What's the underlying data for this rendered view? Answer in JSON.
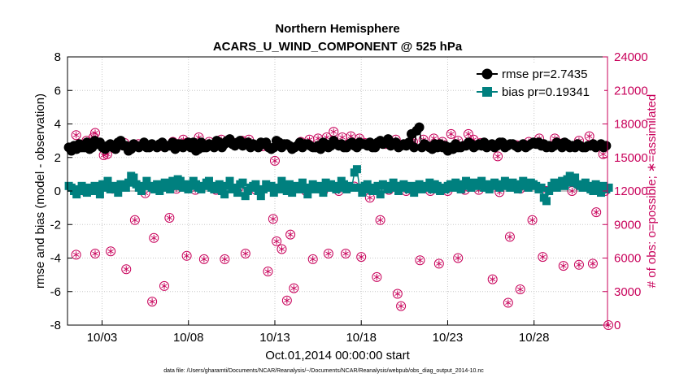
{
  "chart_data": {
    "type": "line",
    "title": "Northern Hemisphere",
    "subtitle": "ACARS_U_WIND_COMPONENT @ 525 hPa",
    "xlabel": "Oct.01,2014 00:00:00 start",
    "ylabel": "rmse and bias (model - observation)",
    "ylabel_right": "# of obs: o=possible; ∗=assimilated",
    "footnote": "data file: /Users/gharamti/Documents/NCAR/Reanalysis/~/Documents/NCAR/Reanalysis/webpub/obs_diag_output_2014-10.nc",
    "x_range_days": [
      1.0,
      32.25
    ],
    "x_ticks": [
      {
        "day": 3,
        "label": "10/03"
      },
      {
        "day": 8,
        "label": "10/08"
      },
      {
        "day": 13,
        "label": "10/13"
      },
      {
        "day": 18,
        "label": "10/18"
      },
      {
        "day": 23,
        "label": "10/23"
      },
      {
        "day": 28,
        "label": "10/28"
      }
    ],
    "ylim": [
      -8,
      8
    ],
    "yticks": [
      -8,
      -6,
      -4,
      -2,
      0,
      2,
      4,
      6,
      8
    ],
    "ylim_right": [
      0,
      24000
    ],
    "yticks_right": [
      0,
      3000,
      6000,
      9000,
      12000,
      15000,
      18000,
      21000,
      24000
    ],
    "grid": true,
    "legend_position": "top-right",
    "colors": {
      "rmse": "#000000",
      "bias": "#00807f",
      "obs": "#c8005a",
      "grid": "#c8c8c8"
    },
    "series": [
      {
        "name": "rmse pr=2.7435",
        "values": [
          2.6,
          2.4,
          2.7,
          2.5,
          2.8,
          2.6,
          2.6,
          2.9,
          2.5,
          2.6,
          3.0,
          2.8,
          2.9,
          2.6,
          2.5,
          2.7,
          2.8,
          2.6,
          2.5,
          2.9,
          3.0,
          2.7,
          2.7,
          2.4,
          2.5,
          2.8,
          2.7,
          2.6,
          2.7,
          2.9,
          2.6,
          2.6,
          2.8,
          2.7,
          2.6,
          2.8,
          2.9,
          2.6,
          2.7,
          2.7,
          2.9,
          2.5,
          2.8,
          2.8,
          2.6,
          2.8,
          2.9,
          2.6,
          2.9,
          2.4,
          2.5,
          2.9,
          2.6,
          2.6,
          2.8,
          2.7,
          2.6,
          3.0,
          2.9,
          2.6,
          2.8,
          3.0,
          3.1,
          2.8,
          2.7,
          2.9,
          3.0,
          2.7,
          2.8,
          2.9,
          2.6,
          2.8,
          2.7,
          2.6,
          2.9,
          2.8,
          2.9,
          2.6,
          2.5,
          2.6,
          3.0,
          2.9,
          2.6,
          2.8,
          2.8,
          2.7,
          2.5,
          2.6,
          2.7,
          2.9,
          2.6,
          2.8,
          2.8,
          2.7,
          2.6,
          2.6,
          2.7,
          2.5,
          2.9,
          2.8,
          2.6,
          2.7,
          3.0,
          2.8,
          2.7,
          2.8,
          2.6,
          2.6,
          2.8,
          2.9,
          2.7,
          2.6,
          2.9,
          2.8,
          2.8,
          2.7,
          2.9,
          2.6,
          2.6,
          2.9,
          3.0,
          2.8,
          2.9,
          3.1,
          2.7,
          2.8,
          2.9,
          2.6,
          2.7,
          2.8,
          2.7,
          2.9,
          3.4,
          2.6,
          3.6,
          3.8,
          2.6,
          2.8,
          2.7,
          2.6,
          2.5,
          2.8,
          2.6,
          2.8,
          2.6,
          2.7,
          2.4,
          2.6,
          2.5,
          2.8,
          2.6,
          2.6,
          2.7,
          2.7,
          2.9,
          2.8,
          2.6,
          2.7,
          2.8,
          2.7,
          2.9,
          2.6,
          2.7,
          2.8,
          2.6,
          2.7,
          2.9,
          2.9,
          2.6,
          2.7,
          2.8,
          2.8,
          2.7,
          2.6,
          2.7,
          2.8,
          2.6,
          2.7,
          2.8,
          2.9,
          2.8,
          2.9,
          2.7,
          2.8,
          2.6,
          2.7,
          2.6,
          2.7,
          2.9,
          2.8,
          2.6,
          2.9,
          2.8,
          2.6,
          2.7,
          2.6,
          2.8,
          2.7,
          2.6,
          2.6,
          2.7,
          2.7,
          2.8,
          2.6,
          2.7,
          2.8,
          2.6,
          2.7
        ]
      },
      {
        "name": "bias pr=0.19341",
        "values": [
          0.3,
          0.2,
          0.0,
          -0.2,
          0.1,
          0.3,
          0.0,
          -0.1,
          0.2,
          0.0,
          0.3,
          0.1,
          -0.2,
          0.4,
          0.2,
          0.6,
          0.1,
          0.3,
          0.2,
          -0.1,
          0.4,
          0.3,
          0.2,
          0.5,
          0.9,
          0.8,
          0.4,
          0.2,
          0.0,
          0.3,
          0.6,
          0.3,
          0.2,
          0.1,
          0.4,
          0.0,
          0.3,
          0.5,
          0.2,
          0.1,
          0.6,
          0.3,
          0.7,
          0.6,
          0.2,
          0.4,
          0.1,
          0.3,
          0.6,
          0.4,
          0.2,
          0.1,
          0.3,
          0.5,
          0.6,
          0.2,
          0.1,
          0.3,
          0.4,
          0.0,
          -0.2,
          0.3,
          0.6,
          0.1,
          0.2,
          -0.1,
          0.4,
          0.5,
          -0.3,
          0.0,
          0.2,
          0.3,
          0.4,
          0.0,
          -0.3,
          0.1,
          0.4,
          0.2,
          0.3,
          -0.1,
          0.2,
          0.1,
          0.6,
          0.3,
          0.0,
          0.4,
          -0.1,
          0.3,
          0.1,
          0.2,
          0.5,
          0.1,
          -0.2,
          0.2,
          0.4,
          0.1,
          0.3,
          0.2,
          -0.1,
          0.5,
          0.2,
          0.4,
          0.3,
          0.1,
          0.2,
          0.6,
          0.4,
          0.1,
          0.3,
          0.2,
          1.1,
          1.3,
          0.2,
          -0.1,
          0.3,
          0.4,
          0.1,
          0.0,
          0.2,
          0.3,
          -0.2,
          0.4,
          0.3,
          0.1,
          0.2,
          0.5,
          0.3,
          0.0,
          0.3,
          0.4,
          0.2,
          0.1,
          0.3,
          -0.1,
          0.2,
          0.4,
          0.1,
          0.3,
          0.2,
          0.5,
          0.1,
          0.4,
          0.3,
          0.0,
          0.2,
          0.1,
          0.3,
          0.4,
          0.2,
          0.5,
          0.3,
          0.1,
          0.4,
          0.6,
          0.3,
          0.2,
          0.5,
          0.4,
          0.3,
          0.6,
          0.2,
          0.4,
          0.1,
          0.3,
          0.5,
          0.4,
          0.2,
          0.3,
          0.6,
          0.4,
          0.2,
          0.5,
          0.3,
          0.1,
          0.4,
          0.6,
          0.3,
          0.2,
          0.5,
          0.4,
          0.3,
          0.1,
          0.2,
          -0.4,
          -0.6,
          0.0,
          0.3,
          0.5,
          0.2,
          0.4,
          0.6,
          0.3,
          0.7,
          0.9,
          0.5,
          0.8,
          0.4,
          0.3,
          0.2,
          0.5,
          0.3,
          0.1,
          0.0,
          0.4,
          0.2,
          -0.1,
          0.3,
          0.1,
          0.2
        ]
      },
      {
        "name": "obs possible",
        "axis": "right",
        "points": [
          [
            1.5,
            17000
          ],
          [
            1.5,
            6300
          ],
          [
            2.0,
            12000
          ],
          [
            2.1,
            16500
          ],
          [
            2.5,
            16800
          ],
          [
            2.6,
            17200
          ],
          [
            2.6,
            6400
          ],
          [
            3.1,
            15200
          ],
          [
            3.3,
            15300
          ],
          [
            3.5,
            6600
          ],
          [
            3.6,
            12200
          ],
          [
            4.0,
            16100
          ],
          [
            4.3,
            16300
          ],
          [
            4.4,
            5000
          ],
          [
            4.9,
            9400
          ],
          [
            5.1,
            16200
          ],
          [
            5.5,
            11800
          ],
          [
            5.9,
            2100
          ],
          [
            6.0,
            7800
          ],
          [
            6.3,
            16000
          ],
          [
            6.6,
            3500
          ],
          [
            6.9,
            9600
          ],
          [
            7.1,
            16400
          ],
          [
            7.3,
            12200
          ],
          [
            7.7,
            16600
          ],
          [
            7.9,
            6200
          ],
          [
            8.0,
            16300
          ],
          [
            8.4,
            12100
          ],
          [
            8.6,
            16800
          ],
          [
            8.9,
            5900
          ],
          [
            9.2,
            16400
          ],
          [
            9.6,
            12100
          ],
          [
            9.9,
            16600
          ],
          [
            10.1,
            5900
          ],
          [
            10.5,
            16400
          ],
          [
            10.9,
            12300
          ],
          [
            11.1,
            16500
          ],
          [
            11.3,
            6400
          ],
          [
            11.5,
            16600
          ],
          [
            11.9,
            12100
          ],
          [
            12.3,
            16000
          ],
          [
            12.5,
            16100
          ],
          [
            12.6,
            4800
          ],
          [
            12.9,
            9500
          ],
          [
            13.0,
            14700
          ],
          [
            13.1,
            7500
          ],
          [
            13.4,
            6800
          ],
          [
            13.7,
            2200
          ],
          [
            13.9,
            8100
          ],
          [
            14.1,
            3300
          ],
          [
            14.5,
            16400
          ],
          [
            14.8,
            12000
          ],
          [
            15.0,
            16600
          ],
          [
            15.2,
            5900
          ],
          [
            15.5,
            16700
          ],
          [
            15.8,
            12000
          ],
          [
            16.0,
            16800
          ],
          [
            16.1,
            6400
          ],
          [
            16.4,
            17300
          ],
          [
            16.7,
            12000
          ],
          [
            16.9,
            16800
          ],
          [
            17.1,
            6400
          ],
          [
            17.4,
            16900
          ],
          [
            17.6,
            12400
          ],
          [
            17.9,
            16700
          ],
          [
            18.0,
            6100
          ],
          [
            18.2,
            16300
          ],
          [
            18.5,
            11400
          ],
          [
            18.9,
            4300
          ],
          [
            19.1,
            9400
          ],
          [
            19.4,
            16200
          ],
          [
            19.6,
            12100
          ],
          [
            20.0,
            16600
          ],
          [
            20.1,
            2800
          ],
          [
            20.3,
            1700
          ],
          [
            20.6,
            12000
          ],
          [
            20.9,
            16300
          ],
          [
            21.0,
            16400
          ],
          [
            21.4,
            5800
          ],
          [
            21.6,
            16600
          ],
          [
            22.0,
            12000
          ],
          [
            22.2,
            16700
          ],
          [
            22.5,
            5500
          ],
          [
            22.7,
            16400
          ],
          [
            23.0,
            12000
          ],
          [
            23.2,
            17100
          ],
          [
            23.6,
            6000
          ],
          [
            23.6,
            16500
          ],
          [
            24.0,
            12100
          ],
          [
            24.2,
            17100
          ],
          [
            24.5,
            16600
          ],
          [
            24.8,
            12100
          ],
          [
            24.9,
            16300
          ],
          [
            25.3,
            16100
          ],
          [
            25.6,
            4100
          ],
          [
            25.9,
            15100
          ],
          [
            26.0,
            11900
          ],
          [
            26.5,
            2000
          ],
          [
            26.6,
            7900
          ],
          [
            27.0,
            16100
          ],
          [
            27.2,
            12200
          ],
          [
            27.2,
            3200
          ],
          [
            27.7,
            16400
          ],
          [
            27.9,
            9400
          ],
          [
            28.3,
            16700
          ],
          [
            28.5,
            6100
          ],
          [
            28.7,
            12000
          ],
          [
            29.2,
            16700
          ],
          [
            29.7,
            5300
          ],
          [
            29.7,
            16300
          ],
          [
            30.2,
            12000
          ],
          [
            30.6,
            16500
          ],
          [
            30.6,
            5400
          ],
          [
            31.2,
            16900
          ],
          [
            31.4,
            5500
          ],
          [
            31.6,
            10100
          ],
          [
            32.0,
            15300
          ],
          [
            32.1,
            12000
          ],
          [
            32.3,
            0
          ]
        ]
      }
    ],
    "legend": [
      "rmse pr=2.7435",
      "bias pr=0.19341"
    ]
  }
}
